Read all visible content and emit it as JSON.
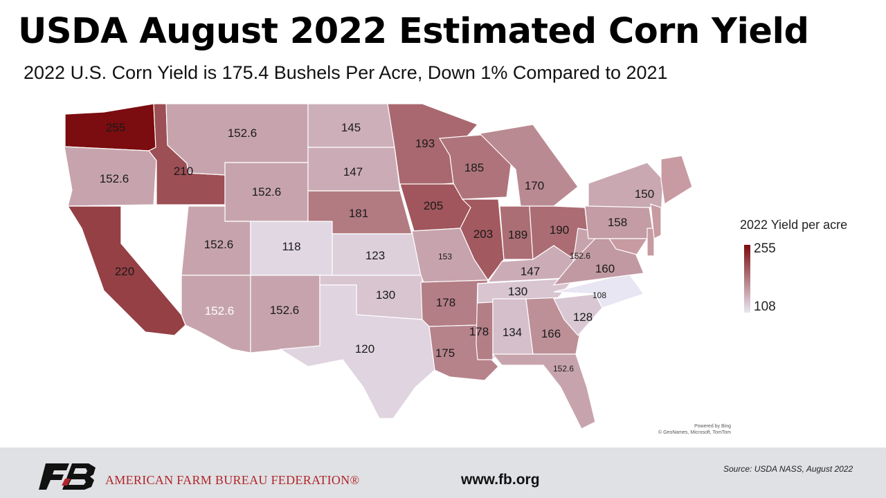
{
  "title": "USDA August 2022 Estimated Corn Yield",
  "subtitle": "2022 U.S. Corn Yield is 175.4 Bushels Per Acre, Down 1% Compared to 2021",
  "legend": {
    "title": "2022 Yield per acre",
    "max": "255",
    "min": "108",
    "max_color": "#7b0c0f",
    "min_color": "#e8e6f2"
  },
  "map_credit": {
    "line1": "Powered by Bing",
    "line2": "© GeoNames, Microsoft, TomTom"
  },
  "footer": {
    "org_name": "AMERICAN FARM BUREAU FEDERATION®",
    "website": "www.fb.org",
    "source": "Source:  USDA NASS, August 2022"
  },
  "chart_data": {
    "type": "choropleth",
    "title": "USDA August 2022 Estimated Corn Yield",
    "subtitle": "2022 U.S. Corn Yield is 175.4 Bushels Per Acre, Down 1% Compared to 2021",
    "scale": {
      "min": 108,
      "max": 255
    },
    "states": [
      {
        "state": "WA",
        "label": "255",
        "value": 255
      },
      {
        "state": "OR",
        "label": "152.6",
        "value": 152.6
      },
      {
        "state": "CA",
        "label": "220",
        "value": 220
      },
      {
        "state": "ID",
        "label": "210",
        "value": 210
      },
      {
        "state": "NV",
        "label": "",
        "value": null
      },
      {
        "state": "MT",
        "label": "152.6",
        "value": 152.6
      },
      {
        "state": "WY",
        "label": "152.6",
        "value": 152.6
      },
      {
        "state": "UT",
        "label": "152.6",
        "value": 152.6
      },
      {
        "state": "AZ",
        "label": "152.6",
        "value": 152.6
      },
      {
        "state": "CO",
        "label": "118",
        "value": 118
      },
      {
        "state": "NM",
        "label": "152.6",
        "value": 152.6
      },
      {
        "state": "ND",
        "label": "145",
        "value": 145
      },
      {
        "state": "SD",
        "label": "147",
        "value": 147
      },
      {
        "state": "NE",
        "label": "181",
        "value": 181
      },
      {
        "state": "KS",
        "label": "123",
        "value": 123
      },
      {
        "state": "OK",
        "label": "130",
        "value": 130
      },
      {
        "state": "TX",
        "label": "120",
        "value": 120
      },
      {
        "state": "MN",
        "label": "193",
        "value": 193
      },
      {
        "state": "IA",
        "label": "205",
        "value": 205
      },
      {
        "state": "MO",
        "label": "153",
        "value": 153
      },
      {
        "state": "AR",
        "label": "178",
        "value": 178
      },
      {
        "state": "LA",
        "label": "175",
        "value": 175
      },
      {
        "state": "WI",
        "label": "185",
        "value": 185
      },
      {
        "state": "IL",
        "label": "203",
        "value": 203
      },
      {
        "state": "MS",
        "label": "178",
        "value": 178
      },
      {
        "state": "MI",
        "label": "170",
        "value": 170
      },
      {
        "state": "IN",
        "label": "189",
        "value": 189
      },
      {
        "state": "KY",
        "label": "147",
        "value": 147
      },
      {
        "state": "TN",
        "label": "130",
        "value": 130
      },
      {
        "state": "AL",
        "label": "134",
        "value": 134
      },
      {
        "state": "OH",
        "label": "190",
        "value": 190
      },
      {
        "state": "WV",
        "label": "152.6",
        "value": 152.6
      },
      {
        "state": "GA",
        "label": "166",
        "value": 166
      },
      {
        "state": "FL",
        "label": "152.6",
        "value": 152.6
      },
      {
        "state": "SC",
        "label": "128",
        "value": 128
      },
      {
        "state": "NC",
        "label": "108",
        "value": 108
      },
      {
        "state": "VA",
        "label": "160",
        "value": 160
      },
      {
        "state": "PA",
        "label": "158",
        "value": 158
      },
      {
        "state": "NY",
        "label": "150",
        "value": 150
      },
      {
        "state": "MD",
        "label": "",
        "value": null
      },
      {
        "state": "DE",
        "label": "",
        "value": null
      },
      {
        "state": "NJ",
        "label": "",
        "value": null
      },
      {
        "state": "NE-region",
        "label": "",
        "value": null
      }
    ]
  }
}
